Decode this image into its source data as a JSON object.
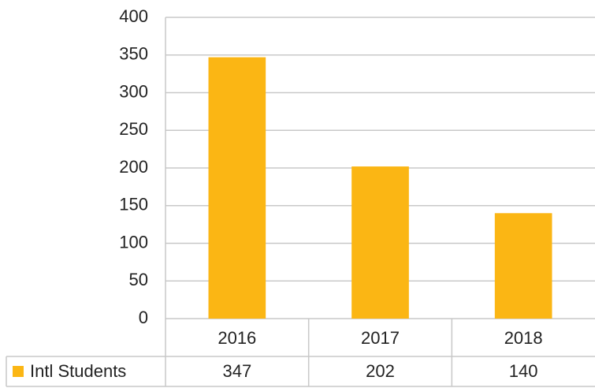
{
  "chart_data": {
    "type": "bar",
    "categories": [
      "2016",
      "2017",
      "2018"
    ],
    "series": [
      {
        "name": "Intl Students",
        "color": "#fbb614",
        "values": [
          347,
          202,
          140
        ]
      }
    ],
    "ylim": [
      0,
      400
    ],
    "yticks": [
      0,
      50,
      100,
      150,
      200,
      250,
      300,
      350,
      400
    ],
    "grid": true
  }
}
